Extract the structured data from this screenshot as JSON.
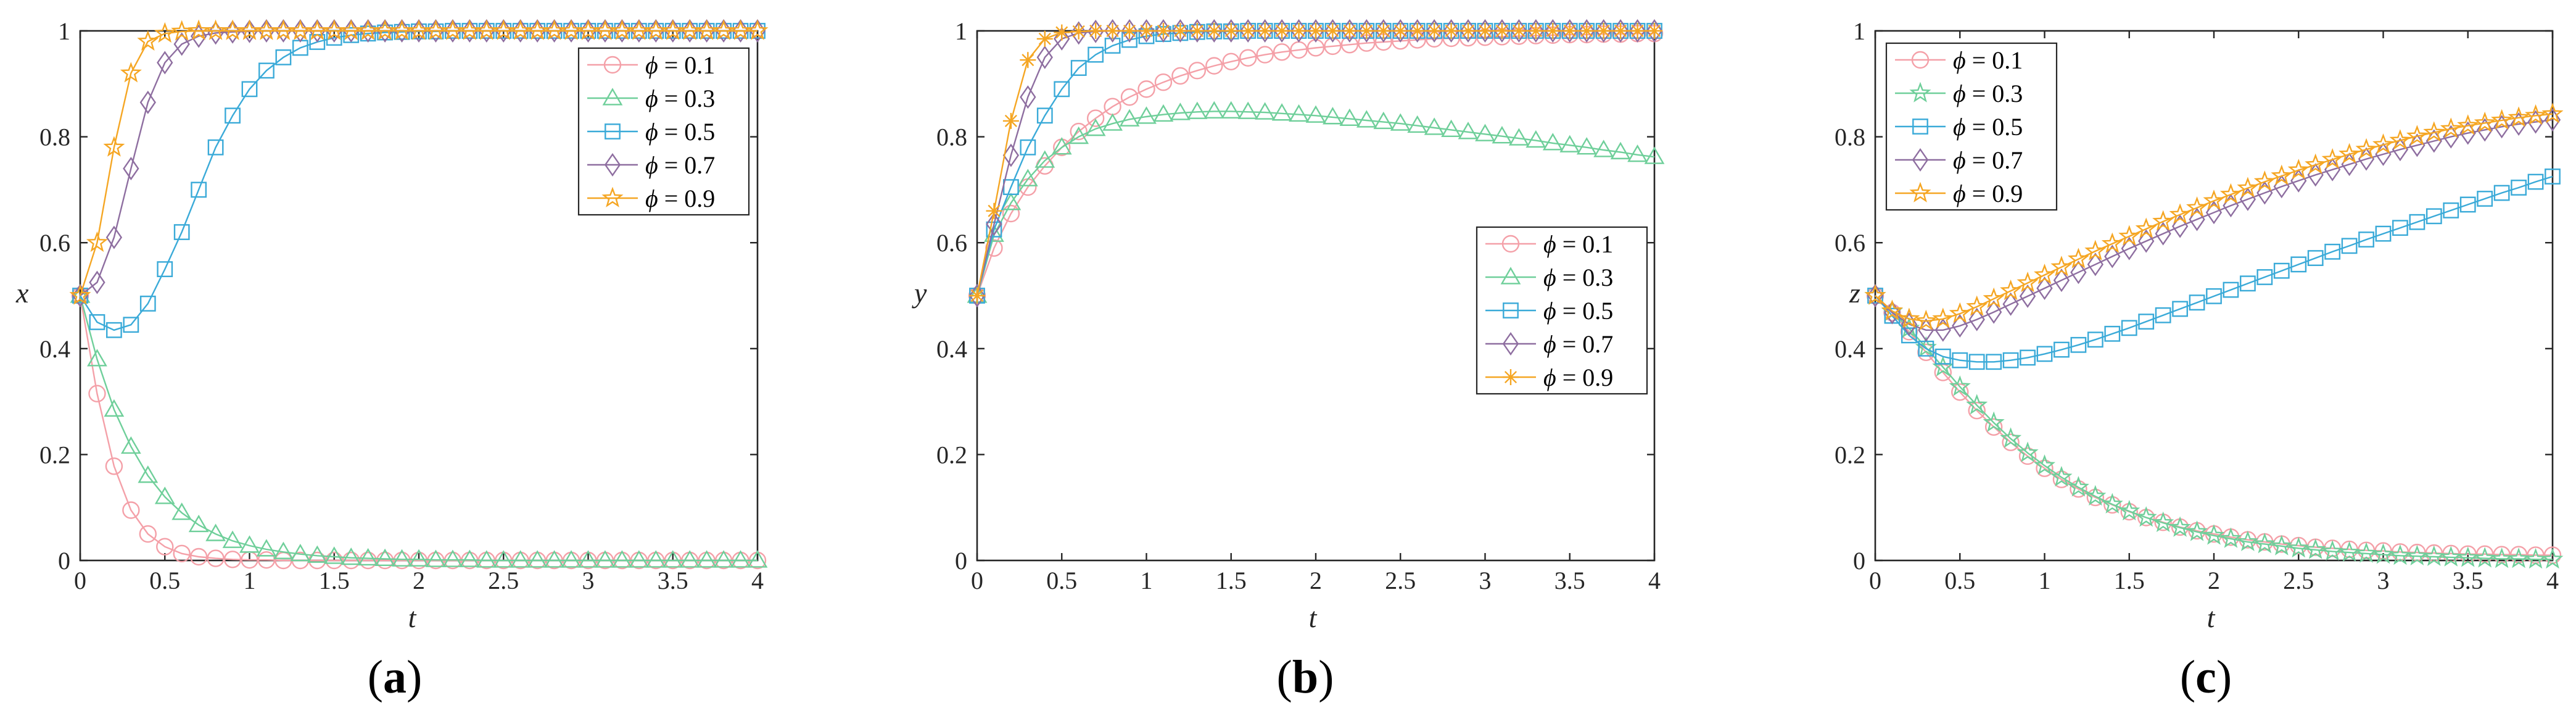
{
  "chart_data": [
    {
      "type": "line",
      "panel_label": "a",
      "xlabel": "t",
      "ylabel": "x",
      "xlim": [
        0,
        4
      ],
      "ylim": [
        0,
        1
      ],
      "xticks": [
        0,
        0.5,
        1,
        1.5,
        2,
        2.5,
        3,
        3.5,
        4
      ],
      "xtick_labels": [
        "0",
        "0.5",
        "1",
        "1.5",
        "2",
        "2.5",
        "3",
        "3.5",
        "4"
      ],
      "yticks": [
        0,
        0.2,
        0.4,
        0.6,
        0.8,
        1
      ],
      "ytick_labels": [
        "0",
        "0.2",
        "0.4",
        "0.6",
        "0.8",
        "1"
      ],
      "legend_position": "top-right",
      "x": [
        0,
        0.1,
        0.2,
        0.3,
        0.4,
        0.5,
        0.6,
        0.7,
        0.8,
        0.9,
        1.0,
        1.1,
        1.2,
        1.3,
        1.4,
        1.5,
        1.6,
        1.7,
        1.8,
        1.9,
        2.0,
        2.1,
        2.2,
        2.3,
        2.4,
        2.5,
        2.6,
        2.7,
        2.8,
        2.9,
        3.0,
        3.1,
        3.2,
        3.3,
        3.4,
        3.5,
        3.6,
        3.7,
        3.8,
        3.9,
        4.0
      ],
      "series": [
        {
          "name": "ϕ = 0.1",
          "legend_symbol": "ϕ",
          "legend_value": " = 0.1",
          "color": "#f4a0a8",
          "marker": "circle",
          "values": [
            0.5,
            0.315,
            0.178,
            0.095,
            0.05,
            0.026,
            0.013,
            0.007,
            0.004,
            0.002,
            0.001,
            0.001,
            0,
            0,
            0,
            0,
            0,
            0,
            0,
            0,
            0,
            0,
            0,
            0,
            0,
            0,
            0,
            0,
            0,
            0,
            0,
            0,
            0,
            0,
            0,
            0,
            0,
            0,
            0,
            0,
            0
          ]
        },
        {
          "name": "ϕ = 0.3",
          "legend_symbol": "ϕ",
          "legend_value": " = 0.3",
          "color": "#6fcf9a",
          "marker": "triangle",
          "values": [
            0.5,
            0.38,
            0.285,
            0.215,
            0.16,
            0.12,
            0.09,
            0.067,
            0.05,
            0.037,
            0.028,
            0.021,
            0.016,
            0.012,
            0.009,
            0.007,
            0.005,
            0.004,
            0.003,
            0.002,
            0.002,
            0.001,
            0.001,
            0.001,
            0,
            0,
            0,
            0,
            0,
            0,
            0,
            0,
            0,
            0,
            0,
            0,
            0,
            0,
            0,
            0,
            0
          ]
        },
        {
          "name": "ϕ = 0.5",
          "legend_symbol": "ϕ",
          "legend_value": " = 0.5",
          "color": "#3aaad8",
          "marker": "square",
          "values": [
            0.5,
            0.45,
            0.435,
            0.445,
            0.485,
            0.55,
            0.62,
            0.7,
            0.78,
            0.84,
            0.89,
            0.925,
            0.95,
            0.968,
            0.979,
            0.987,
            0.992,
            0.995,
            0.997,
            0.998,
            0.999,
            0.999,
            1,
            1,
            1,
            1,
            1,
            1,
            1,
            1,
            1,
            1,
            1,
            1,
            1,
            1,
            1,
            1,
            1,
            1,
            1
          ]
        },
        {
          "name": "ϕ = 0.7",
          "legend_symbol": "ϕ",
          "legend_value": " = 0.7",
          "color": "#8e6ea0",
          "marker": "diamond",
          "values": [
            0.5,
            0.525,
            0.61,
            0.74,
            0.865,
            0.94,
            0.975,
            0.99,
            0.996,
            0.998,
            0.999,
            1,
            1,
            1,
            1,
            1,
            1,
            1,
            1,
            1,
            1,
            1,
            1,
            1,
            1,
            1,
            1,
            1,
            1,
            1,
            1,
            1,
            1,
            1,
            1,
            1,
            1,
            1,
            1,
            1,
            1
          ]
        },
        {
          "name": "ϕ = 0.9",
          "legend_symbol": "ϕ",
          "legend_value": " = 0.9",
          "color": "#f5a623",
          "marker": "star",
          "values": [
            0.5,
            0.6,
            0.78,
            0.92,
            0.98,
            0.995,
            0.999,
            1,
            1,
            1,
            1,
            1,
            1,
            1,
            1,
            1,
            1,
            1,
            1,
            1,
            1,
            1,
            1,
            1,
            1,
            1,
            1,
            1,
            1,
            1,
            1,
            1,
            1,
            1,
            1,
            1,
            1,
            1,
            1,
            1,
            1
          ]
        }
      ]
    },
    {
      "type": "line",
      "panel_label": "b",
      "xlabel": "t",
      "ylabel": "y",
      "xlim": [
        0,
        4
      ],
      "ylim": [
        0,
        1
      ],
      "xticks": [
        0,
        0.5,
        1,
        1.5,
        2,
        2.5,
        3,
        3.5,
        4
      ],
      "xtick_labels": [
        "0",
        "0.5",
        "1",
        "1.5",
        "2",
        "2.5",
        "3",
        "3.5",
        "4"
      ],
      "yticks": [
        0,
        0.2,
        0.4,
        0.6,
        0.8,
        1
      ],
      "ytick_labels": [
        "0",
        "0.2",
        "0.4",
        "0.6",
        "0.8",
        "1"
      ],
      "legend_position": "middle-right",
      "x": [
        0,
        0.1,
        0.2,
        0.3,
        0.4,
        0.5,
        0.6,
        0.7,
        0.8,
        0.9,
        1.0,
        1.1,
        1.2,
        1.3,
        1.4,
        1.5,
        1.6,
        1.7,
        1.8,
        1.9,
        2.0,
        2.1,
        2.2,
        2.3,
        2.4,
        2.5,
        2.6,
        2.7,
        2.8,
        2.9,
        3.0,
        3.1,
        3.2,
        3.3,
        3.4,
        3.5,
        3.6,
        3.7,
        3.8,
        3.9,
        4.0
      ],
      "series": [
        {
          "name": "ϕ = 0.1",
          "legend_symbol": "ϕ",
          "legend_value": " = 0.1",
          "color": "#f4a0a8",
          "marker": "circle",
          "values": [
            0.5,
            0.59,
            0.655,
            0.705,
            0.745,
            0.78,
            0.81,
            0.835,
            0.857,
            0.875,
            0.89,
            0.903,
            0.915,
            0.925,
            0.934,
            0.942,
            0.949,
            0.955,
            0.96,
            0.964,
            0.968,
            0.971,
            0.974,
            0.977,
            0.979,
            0.981,
            0.983,
            0.985,
            0.986,
            0.987,
            0.988,
            0.989,
            0.99,
            0.991,
            0.992,
            0.993,
            0.993,
            0.994,
            0.994,
            0.995,
            0.995
          ]
        },
        {
          "name": "ϕ = 0.3",
          "legend_symbol": "ϕ",
          "legend_value": " = 0.3",
          "color": "#6fcf9a",
          "marker": "triangle",
          "values": [
            0.5,
            0.615,
            0.675,
            0.72,
            0.755,
            0.78,
            0.8,
            0.815,
            0.825,
            0.833,
            0.838,
            0.842,
            0.845,
            0.847,
            0.848,
            0.848,
            0.847,
            0.846,
            0.844,
            0.842,
            0.84,
            0.837,
            0.834,
            0.831,
            0.828,
            0.825,
            0.821,
            0.817,
            0.813,
            0.809,
            0.805,
            0.801,
            0.797,
            0.793,
            0.788,
            0.784,
            0.78,
            0.775,
            0.771,
            0.766,
            0.762
          ]
        },
        {
          "name": "ϕ = 0.5",
          "legend_symbol": "ϕ",
          "legend_value": " = 0.5",
          "color": "#3aaad8",
          "marker": "square",
          "values": [
            0.5,
            0.625,
            0.705,
            0.78,
            0.84,
            0.89,
            0.93,
            0.955,
            0.972,
            0.983,
            0.99,
            0.994,
            0.996,
            0.998,
            0.999,
            0.999,
            1,
            1,
            1,
            1,
            1,
            1,
            1,
            1,
            1,
            1,
            1,
            1,
            1,
            1,
            1,
            1,
            1,
            1,
            1,
            1,
            1,
            1,
            1,
            1,
            1
          ]
        },
        {
          "name": "ϕ = 0.7",
          "legend_symbol": "ϕ",
          "legend_value": " = 0.7",
          "color": "#8e6ea0",
          "marker": "diamond",
          "values": [
            0.5,
            0.635,
            0.765,
            0.875,
            0.95,
            0.985,
            0.996,
            0.999,
            1,
            1,
            1,
            1,
            1,
            1,
            1,
            1,
            1,
            1,
            1,
            1,
            1,
            1,
            1,
            1,
            1,
            1,
            1,
            1,
            1,
            1,
            1,
            1,
            1,
            1,
            1,
            1,
            1,
            1,
            1,
            1,
            1
          ]
        },
        {
          "name": "ϕ = 0.9",
          "legend_symbol": "ϕ",
          "legend_value": " = 0.9",
          "color": "#f5a623",
          "marker": "asterisk",
          "values": [
            0.5,
            0.66,
            0.83,
            0.945,
            0.985,
            0.997,
            0.999,
            1,
            1,
            1,
            1,
            1,
            1,
            1,
            1,
            1,
            1,
            1,
            1,
            1,
            1,
            1,
            1,
            1,
            1,
            1,
            1,
            1,
            1,
            1,
            1,
            1,
            1,
            1,
            1,
            1,
            1,
            1,
            1,
            1,
            1
          ]
        }
      ]
    },
    {
      "type": "line",
      "panel_label": "c",
      "xlabel": "t",
      "ylabel": "z",
      "xlim": [
        0,
        4
      ],
      "ylim": [
        0,
        1
      ],
      "xticks": [
        0,
        0.5,
        1,
        1.5,
        2,
        2.5,
        3,
        3.5,
        4
      ],
      "xtick_labels": [
        "0",
        "0.5",
        "1",
        "1.5",
        "2",
        "2.5",
        "3",
        "3.5",
        "4"
      ],
      "yticks": [
        0,
        0.2,
        0.4,
        0.6,
        0.8,
        1
      ],
      "ytick_labels": [
        "0",
        "0.2",
        "0.4",
        "0.6",
        "0.8",
        "1"
      ],
      "legend_position": "top-left",
      "x": [
        0,
        0.1,
        0.2,
        0.3,
        0.4,
        0.5,
        0.6,
        0.7,
        0.8,
        0.9,
        1.0,
        1.1,
        1.2,
        1.3,
        1.4,
        1.5,
        1.6,
        1.7,
        1.8,
        1.9,
        2.0,
        2.1,
        2.2,
        2.3,
        2.4,
        2.5,
        2.6,
        2.7,
        2.8,
        2.9,
        3.0,
        3.1,
        3.2,
        3.3,
        3.4,
        3.5,
        3.6,
        3.7,
        3.8,
        3.9,
        4.0
      ],
      "series": [
        {
          "name": "ϕ = 0.1",
          "legend_symbol": "ϕ",
          "legend_value": " = 0.1",
          "color": "#f4a0a8",
          "marker": "circle",
          "values": [
            0.5,
            0.468,
            0.432,
            0.393,
            0.355,
            0.318,
            0.283,
            0.252,
            0.223,
            0.197,
            0.174,
            0.153,
            0.135,
            0.119,
            0.105,
            0.092,
            0.081,
            0.072,
            0.063,
            0.056,
            0.05,
            0.044,
            0.039,
            0.035,
            0.031,
            0.028,
            0.025,
            0.023,
            0.021,
            0.019,
            0.018,
            0.016,
            0.015,
            0.014,
            0.013,
            0.012,
            0.012,
            0.011,
            0.011,
            0.01,
            0.01
          ]
        },
        {
          "name": "ϕ = 0.3",
          "legend_symbol": "ϕ",
          "legend_value": " = 0.3",
          "color": "#6fcf9a",
          "marker": "star",
          "values": [
            0.5,
            0.47,
            0.438,
            0.402,
            0.365,
            0.328,
            0.293,
            0.26,
            0.23,
            0.203,
            0.179,
            0.157,
            0.138,
            0.121,
            0.106,
            0.093,
            0.081,
            0.071,
            0.062,
            0.054,
            0.047,
            0.041,
            0.035,
            0.031,
            0.027,
            0.023,
            0.02,
            0.017,
            0.015,
            0.013,
            0.011,
            0.009,
            0.008,
            0.007,
            0.006,
            0.005,
            0.004,
            0.003,
            0.003,
            0.002,
            0.002
          ]
        },
        {
          "name": "ϕ = 0.5",
          "legend_symbol": "ϕ",
          "legend_value": " = 0.5",
          "color": "#3aaad8",
          "marker": "square",
          "values": [
            0.5,
            0.462,
            0.425,
            0.4,
            0.385,
            0.378,
            0.375,
            0.375,
            0.378,
            0.383,
            0.39,
            0.398,
            0.407,
            0.417,
            0.428,
            0.439,
            0.451,
            0.463,
            0.475,
            0.487,
            0.499,
            0.511,
            0.523,
            0.535,
            0.547,
            0.559,
            0.571,
            0.583,
            0.594,
            0.606,
            0.617,
            0.628,
            0.639,
            0.65,
            0.661,
            0.672,
            0.683,
            0.694,
            0.704,
            0.715,
            0.725
          ]
        },
        {
          "name": "ϕ = 0.7",
          "legend_symbol": "ϕ",
          "legend_value": " = 0.7",
          "color": "#8e6ea0",
          "marker": "diamond",
          "values": [
            0.5,
            0.468,
            0.446,
            0.435,
            0.435,
            0.443,
            0.455,
            0.469,
            0.484,
            0.499,
            0.514,
            0.529,
            0.544,
            0.559,
            0.574,
            0.589,
            0.603,
            0.617,
            0.631,
            0.644,
            0.657,
            0.67,
            0.682,
            0.694,
            0.706,
            0.717,
            0.728,
            0.738,
            0.748,
            0.758,
            0.767,
            0.776,
            0.784,
            0.792,
            0.8,
            0.807,
            0.813,
            0.819,
            0.824,
            0.828,
            0.832
          ]
        },
        {
          "name": "ϕ = 0.9",
          "legend_symbol": "ϕ",
          "legend_value": " = 0.9",
          "color": "#f5a623",
          "marker": "star",
          "values": [
            0.5,
            0.471,
            0.456,
            0.452,
            0.456,
            0.466,
            0.479,
            0.494,
            0.509,
            0.524,
            0.539,
            0.554,
            0.569,
            0.584,
            0.598,
            0.612,
            0.626,
            0.64,
            0.653,
            0.666,
            0.679,
            0.691,
            0.703,
            0.715,
            0.726,
            0.737,
            0.747,
            0.757,
            0.767,
            0.776,
            0.785,
            0.793,
            0.801,
            0.808,
            0.815,
            0.821,
            0.826,
            0.831,
            0.836,
            0.84,
            0.843
          ]
        }
      ]
    }
  ]
}
